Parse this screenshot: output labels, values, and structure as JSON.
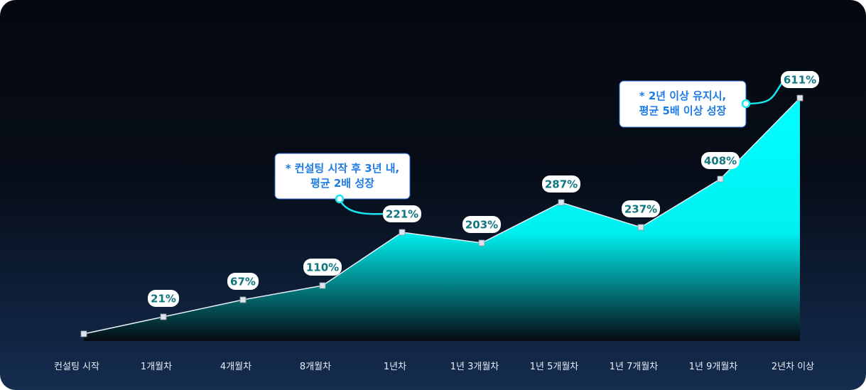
{
  "chart_data": {
    "type": "area",
    "categories": [
      "컨설팅 시작",
      "1개월차",
      "4개월차",
      "8개월차",
      "1년차",
      "1년 3개월차",
      "1년 5개월차",
      "1년 7개월차",
      "1년 9개월차",
      "2년차 이상"
    ],
    "values": [
      0,
      21,
      67,
      110,
      221,
      203,
      287,
      237,
      408,
      611
    ],
    "data_labels": [
      "",
      "21%",
      "67%",
      "110%",
      "221%",
      "203%",
      "287%",
      "237%",
      "408%",
      "611%"
    ],
    "annotations": [
      {
        "point_index": 4,
        "lines": [
          "* 컨설팅 시작 후 3년 내,",
          "평균 2배 성장"
        ]
      },
      {
        "point_index": 9,
        "lines": [
          "* 2년 이상 유지시,",
          "평균 5배 이상 성장"
        ]
      }
    ],
    "grid": false,
    "colors": {
      "area_top": "#00ffff",
      "line": "#e8f0f8",
      "label_text": "#12767e",
      "annotation_text": "#1e7be6",
      "connector": "#19e6f0"
    }
  }
}
